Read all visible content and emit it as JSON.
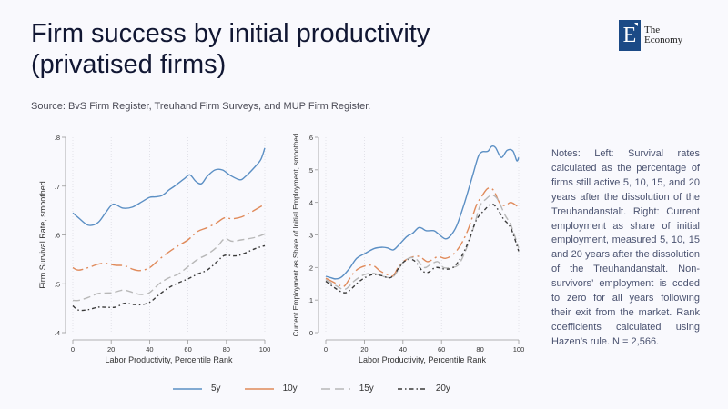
{
  "header": {
    "title_line1": "Firm success by initial productivity",
    "title_line2": "(privatised firms)",
    "source": "Source: BvS Firm Register, Treuhand Firm Surveys, and MUP Firm Register."
  },
  "logo": {
    "letter": "E",
    "line1": "The",
    "line2": "Economy",
    "color": "#1b4a86"
  },
  "notes": "Notes: Left: Survival rates calculated as the percentage of firms still active 5, 10, 15, and 20 years after the dissolution of the Treuhandanstalt. Right: Current employment as share of initial employment, measured 5, 10, 15 and 20 years after the dissolution of the Treuhandanstalt. Non-survivors’ employment is coded to zero for all years following their exit from the market. Rank coefficients calculated using Hazen’s rule. N = 2,566.",
  "legend": [
    {
      "label": "5y",
      "color": "#5b8fc4",
      "style": "solid"
    },
    {
      "label": "10y",
      "color": "#e08a5a",
      "style": "longdash"
    },
    {
      "label": "15y",
      "color": "#b8b8b8",
      "style": "dash"
    },
    {
      "label": "20y",
      "color": "#3a3a3a",
      "style": "dashdot"
    }
  ],
  "chart_data": [
    {
      "type": "line",
      "title": "",
      "xlabel": "Labor Productivity, Percentile Rank",
      "ylabel": "Firm Survival Rate, smoothed",
      "xlim": [
        0,
        100
      ],
      "ylim": [
        0.4,
        0.8
      ],
      "xticks": [
        0,
        20,
        40,
        60,
        80,
        100
      ],
      "xtick_labels": [
        "0",
        "20",
        "40",
        "60",
        "80",
        "100"
      ],
      "yticks": [
        0.4,
        0.5,
        0.6,
        0.7,
        0.8
      ],
      "ytick_labels": [
        ".4",
        ".5",
        ".6",
        ".7",
        ".8"
      ],
      "grid": "vertical dotted",
      "series": [
        {
          "name": "5y",
          "x": [
            0,
            3,
            8,
            13,
            17,
            21,
            26,
            31,
            36,
            40,
            43,
            46,
            48,
            50,
            53,
            58,
            61,
            64,
            67,
            70,
            74,
            78,
            82,
            87,
            90,
            95,
            98,
            100
          ],
          "values": [
            0.645,
            0.635,
            0.62,
            0.625,
            0.645,
            0.663,
            0.655,
            0.657,
            0.668,
            0.677,
            0.678,
            0.68,
            0.685,
            0.692,
            0.7,
            0.715,
            0.723,
            0.71,
            0.705,
            0.72,
            0.733,
            0.733,
            0.722,
            0.713,
            0.72,
            0.74,
            0.755,
            0.778
          ]
        },
        {
          "name": "10y",
          "x": [
            0,
            3,
            8,
            13,
            17,
            22,
            27,
            31,
            35,
            40,
            45,
            50,
            55,
            60,
            65,
            70,
            75,
            79,
            83,
            88,
            93,
            100
          ],
          "values": [
            0.533,
            0.528,
            0.533,
            0.54,
            0.542,
            0.538,
            0.537,
            0.53,
            0.527,
            0.533,
            0.55,
            0.565,
            0.578,
            0.59,
            0.607,
            0.615,
            0.625,
            0.635,
            0.633,
            0.637,
            0.647,
            0.663
          ]
        },
        {
          "name": "15y",
          "x": [
            0,
            3,
            8,
            13,
            17,
            21,
            26,
            29,
            33,
            36,
            40,
            45,
            50,
            55,
            60,
            65,
            70,
            75,
            79,
            83,
            88,
            95,
            100
          ],
          "values": [
            0.466,
            0.466,
            0.472,
            0.48,
            0.481,
            0.482,
            0.487,
            0.485,
            0.48,
            0.478,
            0.482,
            0.5,
            0.512,
            0.52,
            0.535,
            0.55,
            0.56,
            0.575,
            0.592,
            0.587,
            0.59,
            0.595,
            0.602
          ]
        },
        {
          "name": "20y",
          "x": [
            0,
            3,
            8,
            13,
            17,
            22,
            27,
            31,
            35,
            40,
            45,
            50,
            55,
            60,
            65,
            70,
            75,
            79,
            84,
            88,
            95,
            100
          ],
          "values": [
            0.455,
            0.446,
            0.447,
            0.452,
            0.452,
            0.452,
            0.46,
            0.458,
            0.457,
            0.462,
            0.478,
            0.492,
            0.502,
            0.51,
            0.52,
            0.528,
            0.545,
            0.558,
            0.557,
            0.56,
            0.572,
            0.578
          ]
        }
      ]
    },
    {
      "type": "line",
      "title": "",
      "xlabel": "Labor Productivity, Percentile Rank",
      "ylabel": "Current Employment as Share of Initial Employment, smoothed",
      "xlim": [
        0,
        100
      ],
      "ylim": [
        0,
        0.6
      ],
      "xticks": [
        0,
        20,
        40,
        60,
        80,
        100
      ],
      "xtick_labels": [
        "0",
        "20",
        "40",
        "60",
        "80",
        "100"
      ],
      "yticks": [
        0,
        0.1,
        0.2,
        0.3,
        0.4,
        0.5,
        0.6
      ],
      "ytick_labels": [
        "0",
        ".1",
        ".2",
        ".3",
        ".4",
        ".5",
        ".6"
      ],
      "grid": "vertical dotted",
      "series": [
        {
          "name": "5y",
          "x": [
            0,
            3,
            5,
            8,
            12,
            16,
            20,
            25,
            29,
            32,
            35,
            38,
            42,
            45,
            48,
            50,
            52,
            56,
            58,
            62,
            65,
            68,
            72,
            76,
            79,
            81,
            84,
            86,
            88,
            91,
            94,
            97,
            99,
            100
          ],
          "values": [
            0.173,
            0.168,
            0.165,
            0.17,
            0.195,
            0.228,
            0.242,
            0.258,
            0.262,
            0.26,
            0.254,
            0.27,
            0.295,
            0.305,
            0.322,
            0.32,
            0.313,
            0.313,
            0.305,
            0.288,
            0.3,
            0.33,
            0.4,
            0.48,
            0.54,
            0.555,
            0.557,
            0.572,
            0.568,
            0.538,
            0.56,
            0.558,
            0.528,
            0.538
          ]
        },
        {
          "name": "10y",
          "x": [
            0,
            4,
            8,
            10,
            14,
            18,
            24,
            28,
            32,
            35,
            38,
            42,
            47,
            50,
            53,
            58,
            62,
            66,
            70,
            74,
            78,
            81,
            84,
            87,
            90,
            93,
            96,
            100
          ],
          "values": [
            0.167,
            0.155,
            0.143,
            0.145,
            0.18,
            0.2,
            0.207,
            0.19,
            0.178,
            0.175,
            0.205,
            0.225,
            0.235,
            0.228,
            0.218,
            0.233,
            0.228,
            0.24,
            0.27,
            0.32,
            0.39,
            0.42,
            0.443,
            0.437,
            0.4,
            0.39,
            0.4,
            0.385
          ]
        },
        {
          "name": "15y",
          "x": [
            0,
            5,
            10,
            15,
            20,
            25,
            30,
            35,
            40,
            44,
            47,
            51,
            54,
            58,
            61,
            65,
            69,
            73,
            77,
            80,
            83,
            86,
            89,
            93,
            96,
            100
          ],
          "values": [
            0.163,
            0.145,
            0.133,
            0.16,
            0.178,
            0.182,
            0.172,
            0.172,
            0.215,
            0.23,
            0.225,
            0.2,
            0.208,
            0.218,
            0.2,
            0.2,
            0.21,
            0.26,
            0.33,
            0.39,
            0.41,
            0.422,
            0.41,
            0.36,
            0.33,
            0.26
          ]
        },
        {
          "name": "20y",
          "x": [
            0,
            4,
            9,
            12,
            18,
            24,
            29,
            34,
            40,
            44,
            47,
            50,
            53,
            57,
            62,
            66,
            70,
            74,
            78,
            82,
            86,
            89,
            92,
            96,
            100
          ],
          "values": [
            0.158,
            0.14,
            0.123,
            0.128,
            0.16,
            0.178,
            0.175,
            0.17,
            0.215,
            0.225,
            0.215,
            0.19,
            0.185,
            0.2,
            0.195,
            0.2,
            0.23,
            0.28,
            0.345,
            0.375,
            0.395,
            0.38,
            0.35,
            0.32,
            0.25
          ]
        }
      ]
    }
  ]
}
